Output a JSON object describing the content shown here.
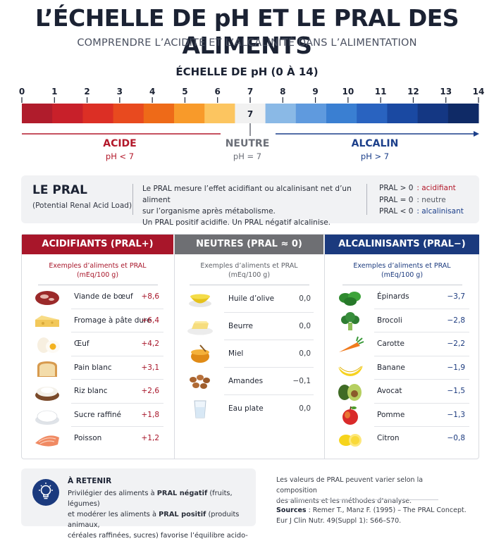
{
  "header": {
    "title": "L’ÉCHELLE DE pH ET LE PRAL DES ALIMENTS",
    "subtitle": "COMPRENDRE L’ACIDITÉ ET L’ALCALINITÉ DANS L’ALIMENTATION"
  },
  "scale": {
    "title": "ÉCHELLE DE pH (0 À 14)",
    "ticks": [
      "0",
      "1",
      "2",
      "3",
      "4",
      "5",
      "6",
      "7",
      "8",
      "9",
      "10",
      "11",
      "12",
      "13",
      "14"
    ],
    "segment_colors": [
      "#b01c2c",
      "#c8202a",
      "#dc2f25",
      "#e84a1f",
      "#ee6a18",
      "#f89a2a",
      "#fcc560",
      "#f1f1f1",
      "#8ab9e6",
      "#5f9ade",
      "#3a7fd2",
      "#2963c0",
      "#1a49a2",
      "#143783",
      "#0f2a66"
    ],
    "neutral_marker": "7",
    "zones": {
      "acid": {
        "label": "ACIDE",
        "sub": "pH < 7",
        "color": "#b3192b"
      },
      "neutral": {
        "label": "NEUTRE",
        "sub": "pH = 7",
        "color": "#6b6f78"
      },
      "alkaline": {
        "label": "ALCALIN",
        "sub": "pH > 7",
        "color": "#1c3f8a"
      }
    }
  },
  "pral": {
    "title": "LE PRAL",
    "subtitle": "(Potential Renal Acid Load)",
    "description_line1": "Le PRAL mesure l’effet acidifiant ou alcalinisant net d’un aliment",
    "description_line2": "sur l’organisme après métabolisme.",
    "description_line3": "Un PRAL positif acidifie. Un PRAL négatif alcalinise.",
    "legend": [
      {
        "key": "PRAL > 0",
        "value": ": acidifiant"
      },
      {
        "key": "PRAL = 0",
        "value": ": neutre"
      },
      {
        "key": "PRAL < 0",
        "value": ": alcalinisant"
      }
    ]
  },
  "panels": {
    "acidifiants": {
      "title": "ACIDIFIANTS (PRAL+)",
      "caption_line1": "Exemples d’aliments et PRAL",
      "caption_line2": "(mEq/100 g)",
      "items": [
        {
          "icon": "beef-icon",
          "label": "Viande de bœuf",
          "value": "+8,6"
        },
        {
          "icon": "cheese-icon",
          "label": "Fromage à pâte dure",
          "value": "+6,4"
        },
        {
          "icon": "egg-icon",
          "label": "Œuf",
          "value": "+4,2"
        },
        {
          "icon": "bread-icon",
          "label": "Pain blanc",
          "value": "+3,1"
        },
        {
          "icon": "rice-icon",
          "label": "Riz blanc",
          "value": "+2,6"
        },
        {
          "icon": "sugar-icon",
          "label": "Sucre raffiné",
          "value": "+1,8"
        },
        {
          "icon": "salmon-icon",
          "label": "Poisson",
          "value": "+1,2"
        }
      ]
    },
    "neutres": {
      "title": "NEUTRES (PRAL ≈ 0)",
      "caption_line1": "Exemples d’aliments et PRAL",
      "caption_line2": "(mEq/100 g)",
      "items": [
        {
          "icon": "olive-oil-icon",
          "label": "Huile d’olive",
          "value": "0,0"
        },
        {
          "icon": "butter-icon",
          "label": "Beurre",
          "value": "0,0"
        },
        {
          "icon": "honey-icon",
          "label": "Miel",
          "value": "0,0"
        },
        {
          "icon": "almonds-icon",
          "label": "Amandes",
          "value": "−0,1"
        },
        {
          "icon": "water-glass-icon",
          "label": "Eau plate",
          "value": "0,0"
        }
      ]
    },
    "alcalinisants": {
      "title": "ALCALINISANTS (PRAL−)",
      "caption_line1": "Exemples d’aliments et PRAL",
      "caption_line2": "(mEq/100 g)",
      "items": [
        {
          "icon": "spinach-icon",
          "label": "Épinards",
          "value": "−3,7"
        },
        {
          "icon": "broccoli-icon",
          "label": "Brocoli",
          "value": "−2,8"
        },
        {
          "icon": "carrot-icon",
          "label": "Carotte",
          "value": "−2,2"
        },
        {
          "icon": "banana-icon",
          "label": "Banane",
          "value": "−1,9"
        },
        {
          "icon": "avocado-icon",
          "label": "Avocat",
          "value": "−1,5"
        },
        {
          "icon": "apple-icon",
          "label": "Pomme",
          "value": "−1,3"
        },
        {
          "icon": "lemon-icon",
          "label": "Citron",
          "value": "−0,8"
        }
      ]
    }
  },
  "retain": {
    "title": "À RETENIR",
    "line1_pre": "Privilégier des aliments à ",
    "line1_bold": "PRAL négatif",
    "line1_post": " (fruits, légumes)",
    "line2_pre": "et modérer les aliments à ",
    "line2_bold": "PRAL positif",
    "line2_post": " (produits animaux,",
    "line3": "céréales raffinées, sucres) favorise l’équilibre acido-basique."
  },
  "note": {
    "line1": "Les valeurs de PRAL peuvent varier selon la composition",
    "line2": "des aliments et les méthodes d’analyse.",
    "sources_label": "Sources",
    "sources_line1": " : Remer T., Manz F. (1995) – The PRAL Concept.",
    "sources_line2": "Eur J Clin Nutr. 49(Suppl 1): S66–S70."
  }
}
